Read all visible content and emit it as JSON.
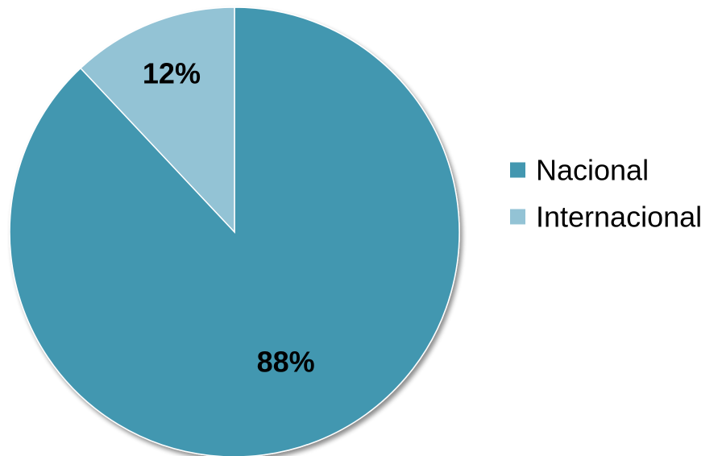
{
  "chart_data": {
    "type": "pie",
    "categories": [
      "Nacional",
      "Internacional"
    ],
    "values": [
      88,
      12
    ],
    "data_labels": [
      "88%",
      "12%"
    ],
    "colors": [
      "#4397b0",
      "#93c3d5"
    ],
    "legend_position": "right",
    "start_angle": "12 o'clock, clockwise",
    "title": "",
    "xlabel": "",
    "ylabel": ""
  }
}
